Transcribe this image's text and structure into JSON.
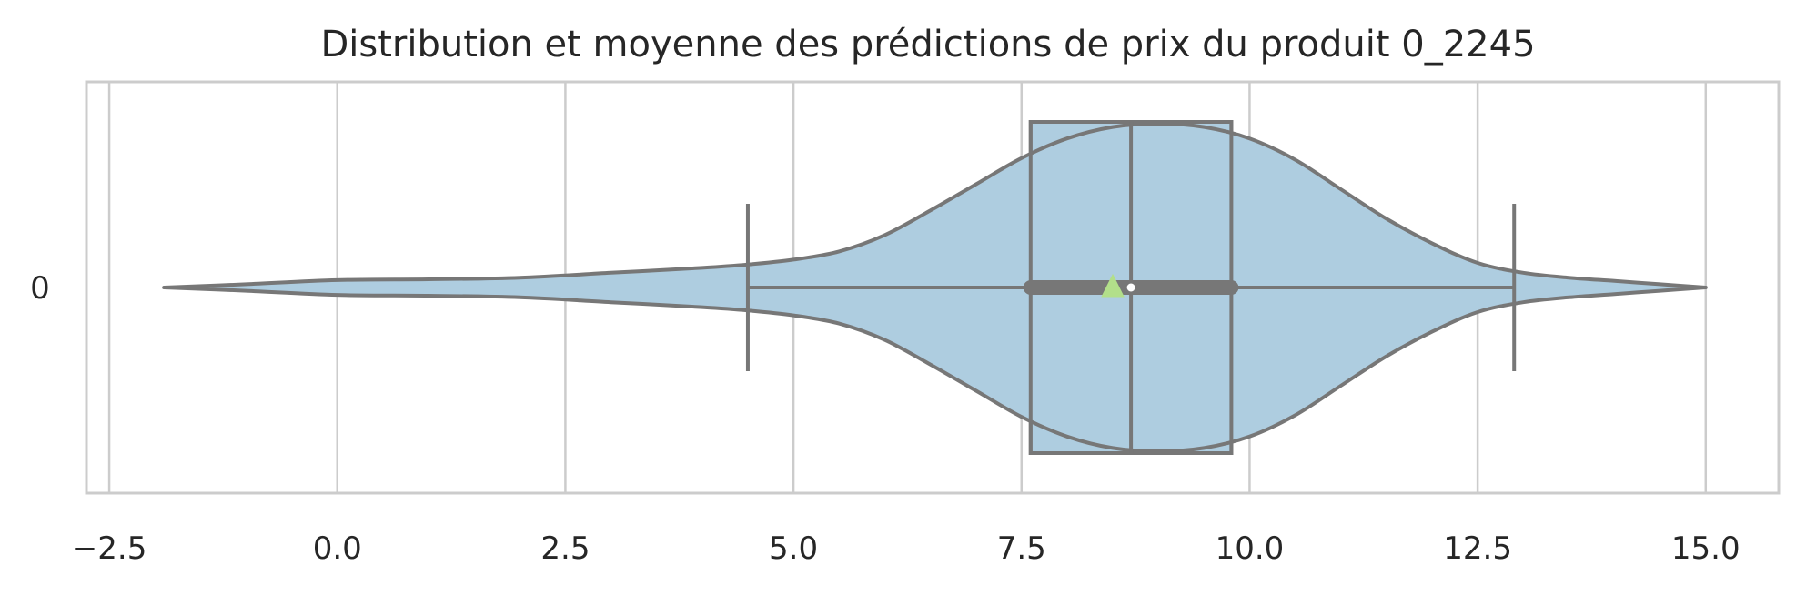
{
  "chart_data": {
    "type": "violin",
    "title": "Distribution et moyenne des prédictions de prix du produit 0_2245",
    "xlabel": "",
    "ylabel": "",
    "orientation": "horizontal",
    "xlim": [
      -2.75,
      15.8
    ],
    "x_ticks": [
      -2.5,
      0.0,
      2.5,
      5.0,
      7.5,
      10.0,
      12.5,
      15.0
    ],
    "x_tick_labels": [
      "−2.5",
      "0.0",
      "2.5",
      "5.0",
      "7.5",
      "10.0",
      "12.5",
      "15.0"
    ],
    "grid": true,
    "categories": [
      "0"
    ],
    "violin": {
      "min": -1.9,
      "max": 15.0,
      "density": [
        [
          -1.9,
          0.0
        ],
        [
          -1.0,
          0.02
        ],
        [
          0.0,
          0.045
        ],
        [
          1.0,
          0.05
        ],
        [
          2.0,
          0.06
        ],
        [
          3.0,
          0.09
        ],
        [
          4.0,
          0.12
        ],
        [
          4.5,
          0.14
        ],
        [
          5.0,
          0.17
        ],
        [
          5.5,
          0.22
        ],
        [
          6.0,
          0.32
        ],
        [
          6.5,
          0.47
        ],
        [
          7.0,
          0.63
        ],
        [
          7.5,
          0.79
        ],
        [
          8.0,
          0.91
        ],
        [
          8.5,
          0.98
        ],
        [
          9.0,
          1.0
        ],
        [
          9.5,
          0.98
        ],
        [
          10.0,
          0.91
        ],
        [
          10.5,
          0.78
        ],
        [
          11.0,
          0.6
        ],
        [
          11.5,
          0.42
        ],
        [
          12.0,
          0.27
        ],
        [
          12.5,
          0.15
        ],
        [
          13.0,
          0.09
        ],
        [
          13.5,
          0.06
        ],
        [
          14.0,
          0.04
        ],
        [
          14.5,
          0.02
        ],
        [
          15.0,
          0.0
        ]
      ]
    },
    "box": {
      "whisker_low": 4.5,
      "q1": 7.6,
      "median": 8.7,
      "q3": 9.8,
      "whisker_high": 12.9
    },
    "inner_box": {
      "q1": 7.6,
      "q3": 9.8,
      "median": 8.7
    },
    "mean": 8.5,
    "colors": {
      "violin_fill": "#aecde0",
      "line": "#777777",
      "mean_marker": "#b2df8a",
      "grid": "#cccccc",
      "frame": "#cccccc"
    }
  }
}
